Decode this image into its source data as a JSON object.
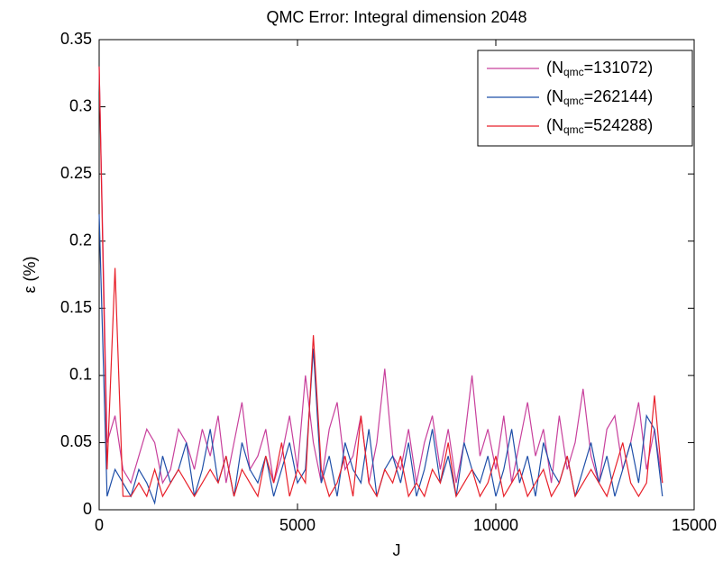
{
  "chart_data": {
    "type": "line",
    "title": "QMC Error: Integral dimension 2048",
    "xlabel": "J",
    "ylabel": "ε (%)",
    "xlim": [
      0,
      15000
    ],
    "ylim": [
      0,
      0.35
    ],
    "xticks": [
      0,
      5000,
      10000,
      15000
    ],
    "yticks": [
      0,
      0.05,
      0.1,
      0.15,
      0.2,
      0.25,
      0.3,
      0.35
    ],
    "legend": "upper right",
    "x": [
      0,
      200,
      400,
      600,
      800,
      1000,
      1200,
      1400,
      1600,
      1800,
      2000,
      2200,
      2400,
      2600,
      2800,
      3000,
      3200,
      3400,
      3600,
      3800,
      4000,
      4200,
      4400,
      4600,
      4800,
      5000,
      5200,
      5400,
      5600,
      5800,
      6000,
      6200,
      6400,
      6600,
      6800,
      7000,
      7200,
      7400,
      7600,
      7800,
      8000,
      8200,
      8400,
      8600,
      8800,
      9000,
      9200,
      9400,
      9600,
      9800,
      10000,
      10200,
      10400,
      10600,
      10800,
      11000,
      11200,
      11400,
      11600,
      11800,
      12000,
      12200,
      12400,
      12600,
      12800,
      13000,
      13200,
      13400,
      13600,
      13800,
      14000,
      14200
    ],
    "series": [
      {
        "name": [
          "(N",
          "qmc",
          "=131072)"
        ],
        "color": "#c8409c",
        "values": [
          0.33,
          0.05,
          0.07,
          0.03,
          0.02,
          0.04,
          0.06,
          0.05,
          0.02,
          0.03,
          0.06,
          0.05,
          0.03,
          0.06,
          0.04,
          0.07,
          0.02,
          0.05,
          0.08,
          0.03,
          0.04,
          0.06,
          0.02,
          0.04,
          0.07,
          0.03,
          0.1,
          0.05,
          0.02,
          0.06,
          0.08,
          0.03,
          0.04,
          0.07,
          0.02,
          0.05,
          0.105,
          0.04,
          0.03,
          0.06,
          0.02,
          0.05,
          0.07,
          0.03,
          0.06,
          0.02,
          0.05,
          0.1,
          0.04,
          0.06,
          0.03,
          0.07,
          0.02,
          0.05,
          0.08,
          0.04,
          0.06,
          0.02,
          0.07,
          0.03,
          0.05,
          0.09,
          0.04,
          0.02,
          0.06,
          0.07,
          0.03,
          0.05,
          0.08,
          0.03,
          0.06,
          0.02
        ]
      },
      {
        "name": [
          "(N",
          "qmc",
          "=262144)"
        ],
        "color": "#1f4fa8",
        "values": [
          0.22,
          0.01,
          0.03,
          0.02,
          0.01,
          0.03,
          0.02,
          0.005,
          0.04,
          0.02,
          0.03,
          0.05,
          0.01,
          0.03,
          0.06,
          0.02,
          0.04,
          0.01,
          0.05,
          0.03,
          0.02,
          0.04,
          0.01,
          0.03,
          0.05,
          0.02,
          0.03,
          0.12,
          0.02,
          0.04,
          0.01,
          0.05,
          0.03,
          0.02,
          0.06,
          0.01,
          0.03,
          0.04,
          0.02,
          0.05,
          0.01,
          0.03,
          0.06,
          0.02,
          0.04,
          0.01,
          0.05,
          0.03,
          0.02,
          0.04,
          0.01,
          0.03,
          0.06,
          0.02,
          0.04,
          0.01,
          0.05,
          0.03,
          0.02,
          0.04,
          0.01,
          0.03,
          0.05,
          0.02,
          0.04,
          0.01,
          0.03,
          0.05,
          0.02,
          0.07,
          0.06,
          0.01
        ]
      },
      {
        "name": [
          "(N",
          "qmc",
          "=524288)"
        ],
        "color": "#e8202a",
        "values": [
          0.33,
          0.03,
          0.18,
          0.01,
          0.01,
          0.02,
          0.01,
          0.03,
          0.01,
          0.02,
          0.03,
          0.02,
          0.01,
          0.02,
          0.03,
          0.02,
          0.04,
          0.01,
          0.03,
          0.02,
          0.01,
          0.04,
          0.02,
          0.05,
          0.01,
          0.03,
          0.02,
          0.13,
          0.03,
          0.01,
          0.02,
          0.04,
          0.01,
          0.07,
          0.02,
          0.01,
          0.03,
          0.02,
          0.04,
          0.01,
          0.02,
          0.01,
          0.03,
          0.02,
          0.05,
          0.01,
          0.02,
          0.03,
          0.01,
          0.02,
          0.04,
          0.01,
          0.02,
          0.03,
          0.01,
          0.02,
          0.03,
          0.01,
          0.02,
          0.04,
          0.01,
          0.02,
          0.03,
          0.02,
          0.01,
          0.03,
          0.05,
          0.02,
          0.01,
          0.02,
          0.085,
          0.02
        ]
      }
    ]
  }
}
